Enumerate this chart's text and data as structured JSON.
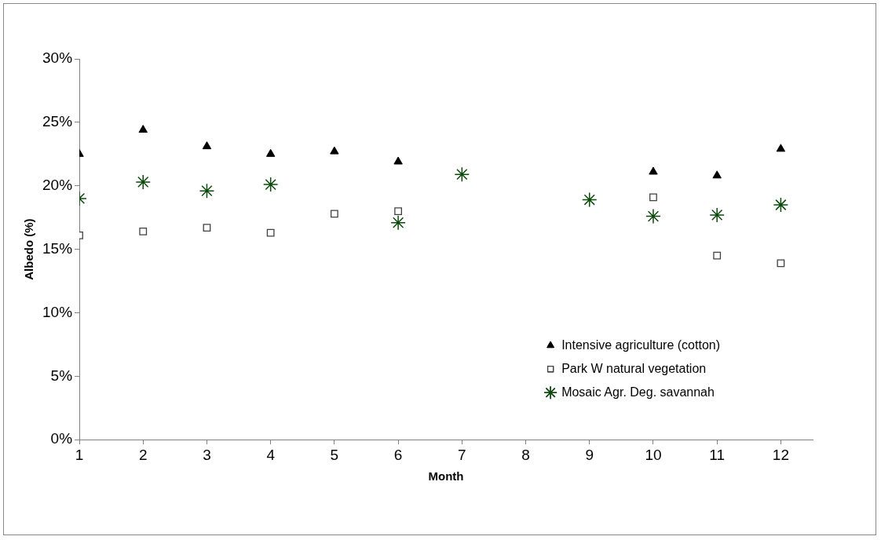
{
  "chart_data": {
    "type": "scatter",
    "xlabel": "Month",
    "ylabel": "Albedo (%)",
    "x": [
      1,
      2,
      3,
      4,
      5,
      6,
      7,
      8,
      9,
      10,
      11,
      12
    ],
    "series": [
      {
        "name": "Intensive agriculture (cotton)",
        "color": "#000000",
        "marker": "triangle",
        "values": [
          22.5,
          24.4,
          23.1,
          22.5,
          22.7,
          21.9,
          null,
          null,
          null,
          21.1,
          20.8,
          22.9
        ]
      },
      {
        "name": "Park W natural vegetation",
        "color": "#404040",
        "marker": "square",
        "values": [
          16.1,
          16.4,
          16.7,
          16.3,
          17.8,
          18.0,
          null,
          null,
          null,
          19.1,
          14.5,
          13.9
        ]
      },
      {
        "name": "Mosaic Agr. Deg. savannah",
        "color": "#0b4a0b",
        "marker": "cross",
        "values": [
          19.0,
          20.3,
          19.6,
          20.1,
          null,
          17.1,
          20.9,
          null,
          18.9,
          17.6,
          17.7,
          18.5
        ]
      }
    ],
    "xlim": [
      1,
      12.5
    ],
    "xticks": [
      1,
      2,
      3,
      4,
      5,
      6,
      7,
      8,
      9,
      10,
      11,
      12
    ],
    "ylim": [
      0,
      30
    ],
    "yticks": [
      {
        "value": 0,
        "label": "0%"
      },
      {
        "value": 5,
        "label": "5%"
      },
      {
        "value": 10,
        "label": "10%"
      },
      {
        "value": 15,
        "label": "15%"
      },
      {
        "value": 20,
        "label": "20%"
      },
      {
        "value": 25,
        "label": "25%"
      },
      {
        "value": 30,
        "label": "30%"
      }
    ],
    "grid": false,
    "legend": "bottom right"
  }
}
